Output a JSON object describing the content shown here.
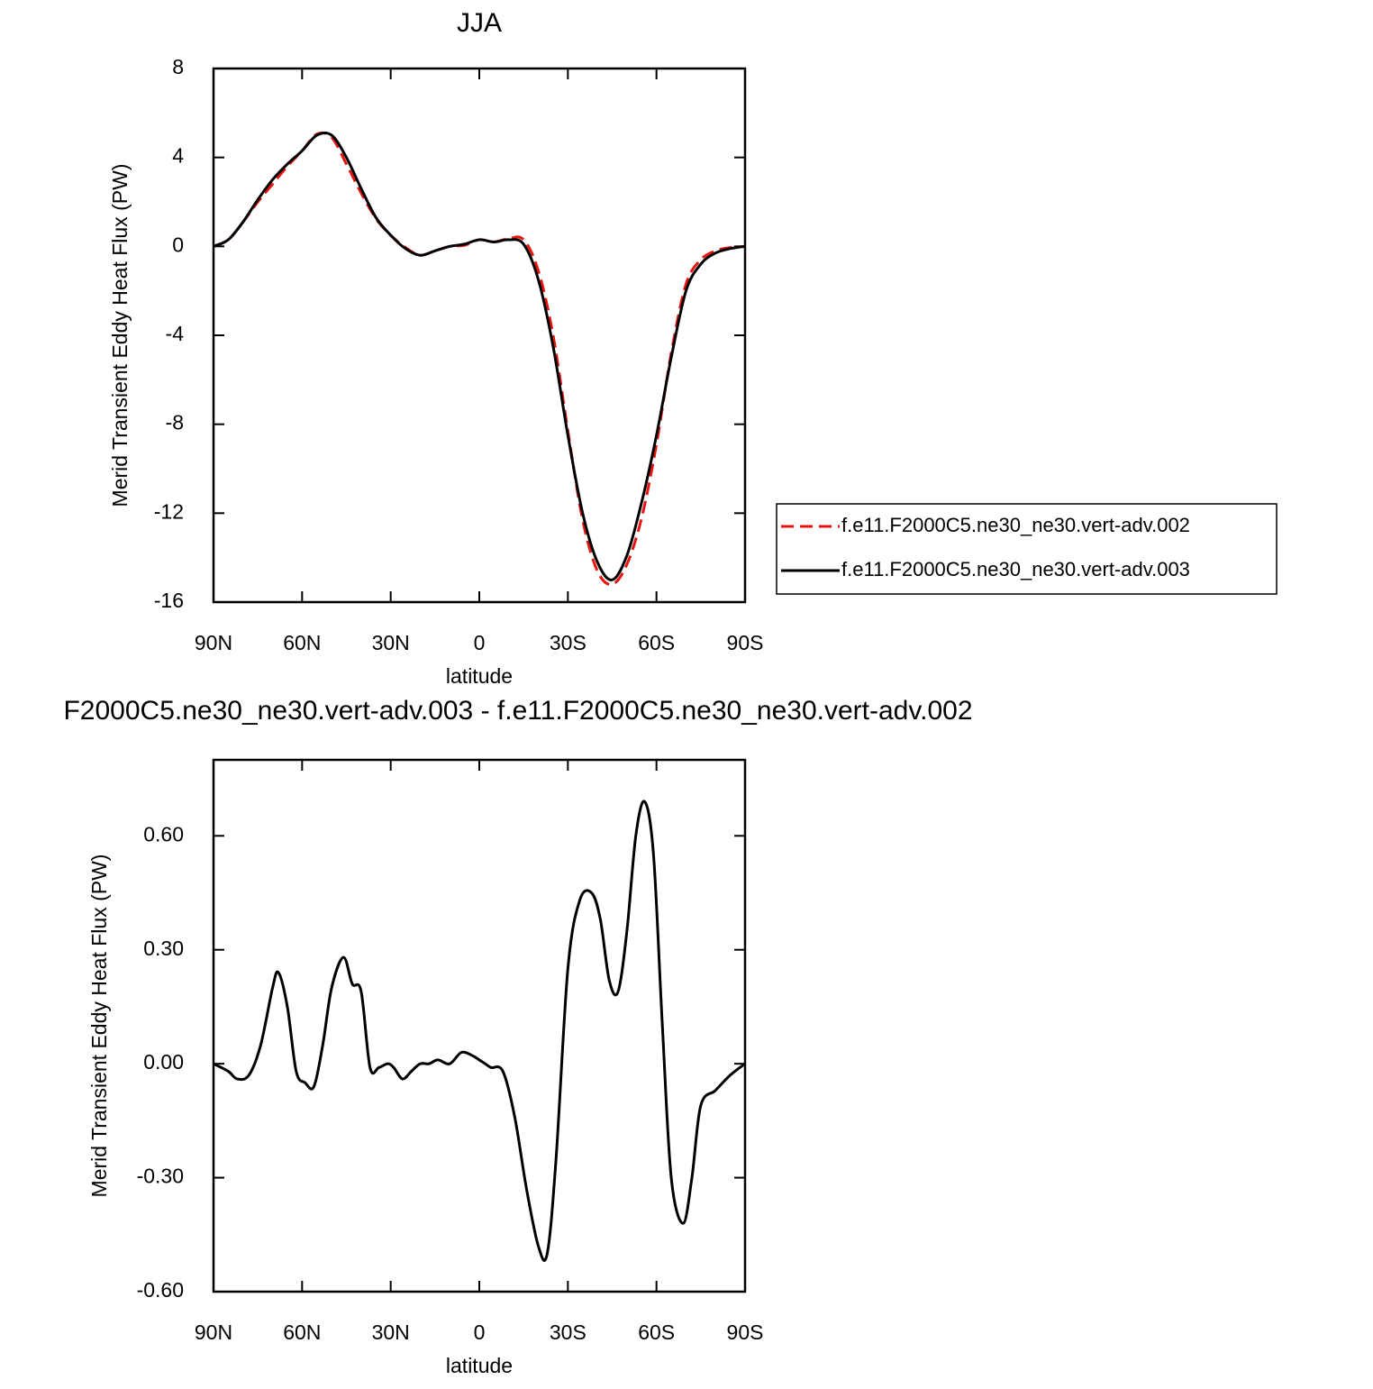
{
  "chart_data": [
    {
      "type": "line",
      "title": "JJA",
      "xlabel": "latitude",
      "ylabel": "Merid Transient Eddy Heat Flux (PW)",
      "x": [
        90,
        85,
        80,
        75,
        70,
        65,
        60,
        55,
        50,
        45,
        40,
        35,
        30,
        25,
        20,
        15,
        10,
        5,
        0,
        -5,
        -10,
        -15,
        -20,
        -25,
        -30,
        -35,
        -40,
        -45,
        -50,
        -55,
        -60,
        -65,
        -70,
        -75,
        -80,
        -85,
        -90
      ],
      "series": [
        {
          "name": "f.e11.F2000C5.ne30_ne30.vert-adv.002",
          "color": "#e8140f",
          "line_style": "dashed",
          "values": [
            0,
            0.3,
            1.1,
            2.0,
            2.8,
            3.6,
            4.3,
            5.05,
            4.9,
            3.7,
            2.4,
            1.25,
            0.5,
            -0.05,
            -0.4,
            -0.2,
            0,
            0.05,
            0.3,
            0.2,
            0.35,
            0.3,
            -1.1,
            -4.0,
            -8.3,
            -12.3,
            -14.6,
            -15.2,
            -14.3,
            -12.2,
            -8.9,
            -4.8,
            -1.7,
            -0.6,
            -0.2,
            -0.05,
            0
          ]
        },
        {
          "name": "f.e11.F2000C5.ne30_ne30.vert-adv.003",
          "color": "#000000",
          "line_style": "solid",
          "values": [
            0,
            0.3,
            1.1,
            2.1,
            3.0,
            3.7,
            4.3,
            5.0,
            5.0,
            4.0,
            2.6,
            1.3,
            0.5,
            -0.1,
            -0.4,
            -0.2,
            0,
            0.1,
            0.3,
            0.2,
            0.3,
            0.1,
            -1.5,
            -4.5,
            -8.5,
            -12.0,
            -14.2,
            -15.0,
            -13.9,
            -11.5,
            -8.5,
            -5.0,
            -2.0,
            -0.8,
            -0.3,
            -0.1,
            0
          ]
        }
      ],
      "xlim": [
        90,
        -90
      ],
      "xticks": [
        {
          "value": 90,
          "label": "90N"
        },
        {
          "value": 60,
          "label": "60N"
        },
        {
          "value": 30,
          "label": "30N"
        },
        0,
        {
          "value": -30,
          "label": "30S"
        },
        {
          "value": -60,
          "label": "60S"
        },
        {
          "value": -90,
          "label": "90S"
        }
      ],
      "ylim": [
        -16,
        8
      ],
      "yticks": [
        -16,
        -12,
        -8,
        -4,
        0,
        4,
        8
      ],
      "legend": "outside-right"
    },
    {
      "type": "line",
      "title": "F2000C5.ne30_ne30.vert-adv.003 - f.e11.F2000C5.ne30_ne30.vert-adv.002",
      "xlabel": "latitude",
      "ylabel": "Merid Transient Eddy Heat Flux (PW)",
      "x": [
        90,
        85,
        82,
        78,
        74,
        70,
        68,
        65,
        62,
        59,
        56,
        53,
        50,
        46,
        43,
        40,
        37,
        34,
        31,
        29,
        26,
        23,
        20,
        17,
        14,
        10,
        6,
        2,
        0,
        -2,
        -4,
        -8,
        -12,
        -16,
        -20,
        -23,
        -26,
        -30,
        -34,
        -38,
        -41,
        -44,
        -47,
        -50,
        -53,
        -56,
        -59,
        -62,
        -65,
        -69,
        -72,
        -75,
        -80,
        -85,
        -90
      ],
      "values": [
        0,
        -0.02,
        -0.04,
        -0.03,
        0.05,
        0.2,
        0.24,
        0.15,
        -0.02,
        -0.05,
        -0.06,
        0.05,
        0.2,
        0.28,
        0.21,
        0.19,
        -0.01,
        -0.01,
        0,
        -0.01,
        -0.04,
        -0.02,
        0,
        0.0,
        0.01,
        0.0,
        0.03,
        0.02,
        0.01,
        0.0,
        -0.01,
        -0.02,
        -0.14,
        -0.33,
        -0.48,
        -0.5,
        -0.25,
        0.25,
        0.43,
        0.45,
        0.38,
        0.22,
        0.19,
        0.35,
        0.6,
        0.69,
        0.55,
        0.1,
        -0.3,
        -0.42,
        -0.3,
        -0.11,
        -0.07,
        -0.03,
        0
      ],
      "color": "#000000",
      "line_style": "solid",
      "xlim": [
        90,
        -90
      ],
      "xticks": [
        {
          "value": 90,
          "label": "90N"
        },
        {
          "value": 60,
          "label": "60N"
        },
        {
          "value": 30,
          "label": "30N"
        },
        0,
        {
          "value": -30,
          "label": "30S"
        },
        {
          "value": -60,
          "label": "60S"
        },
        {
          "value": -90,
          "label": "90S"
        }
      ],
      "ylim": [
        -0.6,
        0.8
      ],
      "yticks": [
        {
          "value": -0.6,
          "label": "-0.60"
        },
        {
          "value": -0.3,
          "label": "-0.30"
        },
        {
          "value": 0,
          "label": "0.00"
        },
        {
          "value": 0.3,
          "label": "0.30"
        },
        {
          "value": 0.6,
          "label": "0.60"
        }
      ]
    }
  ]
}
